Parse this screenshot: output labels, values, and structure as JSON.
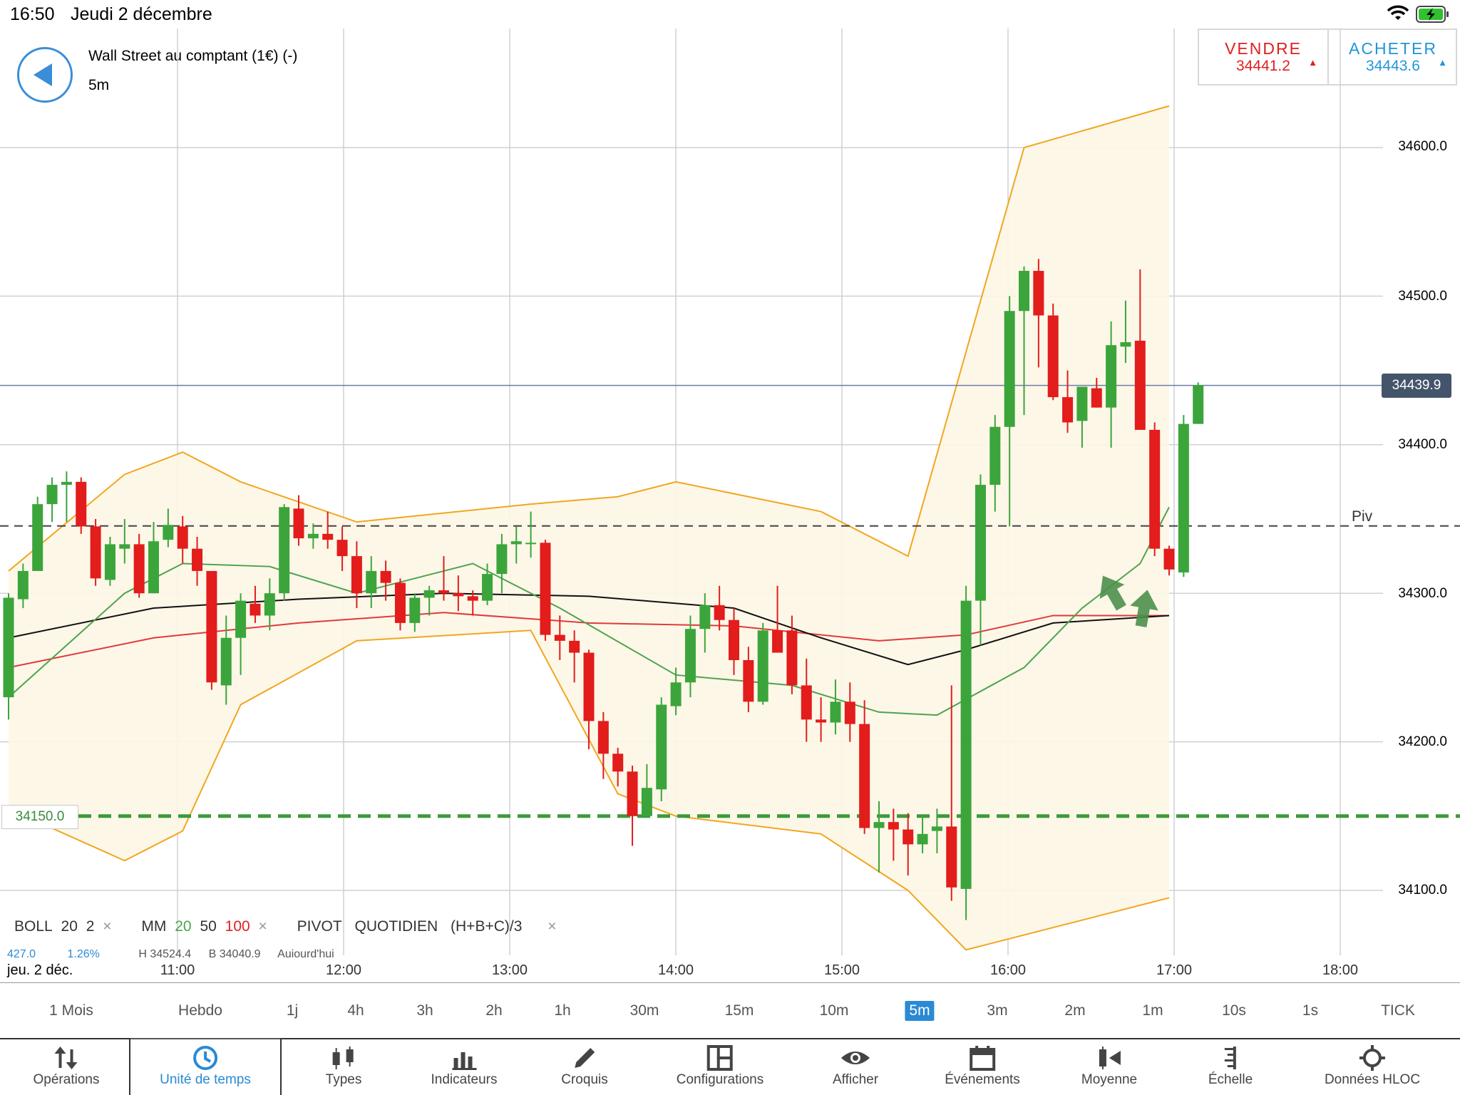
{
  "status": {
    "time": "16:50",
    "date": "Jeudi 2 décembre",
    "wifi_icon": "wifi-icon",
    "battery_icon": "battery-charging-icon"
  },
  "header": {
    "back_icon": "back-arrow-icon",
    "instrument": "Wall Street au comptant (1€) (-)",
    "interval": "5m"
  },
  "trade": {
    "sell": {
      "label": "VENDRE",
      "price": "34441.2",
      "arrow": "▲",
      "color": "#e02020"
    },
    "buy": {
      "label": "ACHETER",
      "price": "34443.6",
      "arrow": "▲",
      "color": "#2196d8"
    }
  },
  "yaxis": {
    "ticks": [
      "34600.0",
      "34500.0",
      "34400.0",
      "34300.0",
      "34200.0",
      "34100.0"
    ]
  },
  "current_price": "34439.9",
  "pivot_label": "Piv",
  "support_label": "34150.0",
  "legend": {
    "boll": "BOLL",
    "boll_p1": "20",
    "boll_p2": "2",
    "mm": "MM",
    "mm_p1": "20",
    "mm_p2": "50",
    "mm_p3": "100",
    "pivot": "PIVOT",
    "pivot_p1": "QUOTIDIEN",
    "pivot_p2": "(H+B+C)/3",
    "close": "×",
    "sub": {
      "a": "427.0",
      "b": "1.26%",
      "c": "H 34524.4",
      "d": "B 34040.9",
      "e": "Aujourd'hui"
    }
  },
  "xaxis": {
    "date": "jeu. 2 déc.",
    "ticks": [
      "11:00",
      "12:00",
      "13:00",
      "14:00",
      "15:00",
      "16:00",
      "17:00",
      "18:00"
    ]
  },
  "timeframes": [
    "1 Mois",
    "Hebdo",
    "1j",
    "4h",
    "3h",
    "2h",
    "1h",
    "30m",
    "15m",
    "10m",
    "5m",
    "3m",
    "2m",
    "1m",
    "10s",
    "1s",
    "TICK"
  ],
  "active_timeframe": "5m",
  "toolbar": [
    {
      "label": "Opérations",
      "icon": "operations-arrows-icon"
    },
    {
      "label": "Unité de temps",
      "icon": "clock-icon"
    },
    {
      "label": "Types",
      "icon": "candlestick-icon"
    },
    {
      "label": "Indicateurs",
      "icon": "bar-chart-icon"
    },
    {
      "label": "Croquis",
      "icon": "pencil-icon"
    },
    {
      "label": "Configurations",
      "icon": "layout-icon"
    },
    {
      "label": "Afficher",
      "icon": "eye-icon"
    },
    {
      "label": "Événements",
      "icon": "calendar-icon"
    },
    {
      "label": "Moyenne",
      "icon": "average-icon"
    },
    {
      "label": "Échelle",
      "icon": "scale-icon"
    },
    {
      "label": "Données HLOC",
      "icon": "crosshair-icon"
    }
  ],
  "colors": {
    "up": "#3ba53b",
    "down": "#e31c1c",
    "boll": "#f2a61f",
    "mm20": "#4ea34e",
    "mm50": "#111111",
    "mm100": "#e23a3a",
    "accent": "#2a8ad4"
  },
  "chart_data": {
    "type": "candlestick",
    "x_unit": "time (5m bars), 2 déc.",
    "ylim": [
      34045,
      34680
    ],
    "candles": [
      {
        "o": 34230,
        "h": 34300,
        "l": 34215,
        "c": 34297
      },
      {
        "o": 34296,
        "h": 34320,
        "l": 34290,
        "c": 34315
      },
      {
        "o": 34315,
        "h": 34365,
        "l": 34315,
        "c": 34360
      },
      {
        "o": 34360,
        "h": 34378,
        "l": 34348,
        "c": 34373
      },
      {
        "o": 34373,
        "h": 34382,
        "l": 34348,
        "c": 34375
      },
      {
        "o": 34375,
        "h": 34378,
        "l": 34340,
        "c": 34345
      },
      {
        "o": 34345,
        "h": 34350,
        "l": 34305,
        "c": 34310
      },
      {
        "o": 34309,
        "h": 34338,
        "l": 34305,
        "c": 34333
      },
      {
        "o": 34330,
        "h": 34350,
        "l": 34320,
        "c": 34333
      },
      {
        "o": 34333,
        "h": 34340,
        "l": 34297,
        "c": 34300
      },
      {
        "o": 34300,
        "h": 34348,
        "l": 34300,
        "c": 34335
      },
      {
        "o": 34336,
        "h": 34357,
        "l": 34331,
        "c": 34346
      },
      {
        "o": 34345,
        "h": 34352,
        "l": 34320,
        "c": 34330
      },
      {
        "o": 34330,
        "h": 34338,
        "l": 34305,
        "c": 34315
      },
      {
        "o": 34315,
        "h": 34315,
        "l": 34235,
        "c": 34240
      },
      {
        "o": 34238,
        "h": 34285,
        "l": 34225,
        "c": 34270
      },
      {
        "o": 34270,
        "h": 34300,
        "l": 34245,
        "c": 34295
      },
      {
        "o": 34293,
        "h": 34305,
        "l": 34280,
        "c": 34285
      },
      {
        "o": 34285,
        "h": 34310,
        "l": 34275,
        "c": 34300
      },
      {
        "o": 34300,
        "h": 34360,
        "l": 34295,
        "c": 34358
      },
      {
        "o": 34357,
        "h": 34366,
        "l": 34332,
        "c": 34337
      },
      {
        "o": 34337,
        "h": 34347,
        "l": 34330,
        "c": 34340
      },
      {
        "o": 34340,
        "h": 34355,
        "l": 34330,
        "c": 34336
      },
      {
        "o": 34336,
        "h": 34345,
        "l": 34315,
        "c": 34325
      },
      {
        "o": 34325,
        "h": 34335,
        "l": 34290,
        "c": 34300
      },
      {
        "o": 34300,
        "h": 34325,
        "l": 34290,
        "c": 34315
      },
      {
        "o": 34315,
        "h": 34322,
        "l": 34295,
        "c": 34307
      },
      {
        "o": 34307,
        "h": 34310,
        "l": 34275,
        "c": 34280
      },
      {
        "o": 34280,
        "h": 34300,
        "l": 34274,
        "c": 34297
      },
      {
        "o": 34297,
        "h": 34305,
        "l": 34285,
        "c": 34302
      },
      {
        "o": 34302,
        "h": 34325,
        "l": 34295,
        "c": 34300
      },
      {
        "o": 34300,
        "h": 34312,
        "l": 34288,
        "c": 34298
      },
      {
        "o": 34298,
        "h": 34302,
        "l": 34285,
        "c": 34295
      },
      {
        "o": 34295,
        "h": 34320,
        "l": 34292,
        "c": 34313
      },
      {
        "o": 34313,
        "h": 34340,
        "l": 34300,
        "c": 34333
      },
      {
        "o": 34333,
        "h": 34345,
        "l": 34320,
        "c": 34335
      },
      {
        "o": 34334,
        "h": 34355,
        "l": 34324,
        "c": 34334
      },
      {
        "o": 34334,
        "h": 34336,
        "l": 34268,
        "c": 34272
      },
      {
        "o": 34272,
        "h": 34285,
        "l": 34255,
        "c": 34268
      },
      {
        "o": 34268,
        "h": 34275,
        "l": 34240,
        "c": 34260
      },
      {
        "o": 34260,
        "h": 34262,
        "l": 34195,
        "c": 34214
      },
      {
        "o": 34214,
        "h": 34220,
        "l": 34175,
        "c": 34192
      },
      {
        "o": 34192,
        "h": 34196,
        "l": 34170,
        "c": 34180
      },
      {
        "o": 34180,
        "h": 34184,
        "l": 34130,
        "c": 34150
      },
      {
        "o": 34150,
        "h": 34185,
        "l": 34150,
        "c": 34169
      },
      {
        "o": 34168,
        "h": 34230,
        "l": 34160,
        "c": 34225
      },
      {
        "o": 34224,
        "h": 34250,
        "l": 34218,
        "c": 34240
      },
      {
        "o": 34240,
        "h": 34285,
        "l": 34230,
        "c": 34276
      },
      {
        "o": 34276,
        "h": 34300,
        "l": 34260,
        "c": 34292
      },
      {
        "o": 34292,
        "h": 34305,
        "l": 34275,
        "c": 34282
      },
      {
        "o": 34282,
        "h": 34290,
        "l": 34245,
        "c": 34255
      },
      {
        "o": 34255,
        "h": 34264,
        "l": 34220,
        "c": 34227
      },
      {
        "o": 34227,
        "h": 34280,
        "l": 34225,
        "c": 34275
      },
      {
        "o": 34275,
        "h": 34305,
        "l": 34262,
        "c": 34260
      },
      {
        "o": 34275,
        "h": 34285,
        "l": 34232,
        "c": 34238
      },
      {
        "o": 34238,
        "h": 34256,
        "l": 34200,
        "c": 34215
      },
      {
        "o": 34215,
        "h": 34230,
        "l": 34200,
        "c": 34213
      },
      {
        "o": 34213,
        "h": 34242,
        "l": 34205,
        "c": 34227
      },
      {
        "o": 34227,
        "h": 34240,
        "l": 34200,
        "c": 34212
      },
      {
        "o": 34212,
        "h": 34228,
        "l": 34138,
        "c": 34142
      },
      {
        "o": 34142,
        "h": 34160,
        "l": 34112,
        "c": 34146
      },
      {
        "o": 34146,
        "h": 34155,
        "l": 34120,
        "c": 34141
      },
      {
        "o": 34141,
        "h": 34152,
        "l": 34110,
        "c": 34131
      },
      {
        "o": 34131,
        "h": 34150,
        "l": 34125,
        "c": 34138
      },
      {
        "o": 34140,
        "h": 34155,
        "l": 34125,
        "c": 34143
      },
      {
        "o": 34143,
        "h": 34238,
        "l": 34093,
        "c": 34102
      },
      {
        "o": 34101,
        "h": 34305,
        "l": 34080,
        "c": 34295
      },
      {
        "o": 34295,
        "h": 34380,
        "l": 34265,
        "c": 34373
      },
      {
        "o": 34373,
        "h": 34420,
        "l": 34355,
        "c": 34412
      },
      {
        "o": 34412,
        "h": 34500,
        "l": 34345,
        "c": 34490
      },
      {
        "o": 34490,
        "h": 34520,
        "l": 34420,
        "c": 34517
      },
      {
        "o": 34517,
        "h": 34525,
        "l": 34452,
        "c": 34487
      },
      {
        "o": 34487,
        "h": 34495,
        "l": 34430,
        "c": 34432
      },
      {
        "o": 34432,
        "h": 34450,
        "l": 34408,
        "c": 34415
      },
      {
        "o": 34416,
        "h": 34438,
        "l": 34398,
        "c": 34439
      },
      {
        "o": 34438,
        "h": 34445,
        "l": 34425,
        "c": 34425
      },
      {
        "o": 34425,
        "h": 34483,
        "l": 34398,
        "c": 34467
      },
      {
        "o": 34466,
        "h": 34497,
        "l": 34455,
        "c": 34469
      },
      {
        "o": 34470,
        "h": 34518,
        "l": 34410,
        "c": 34410
      },
      {
        "o": 34410,
        "h": 34415,
        "l": 34325,
        "c": 34330
      },
      {
        "o": 34330,
        "h": 34332,
        "l": 34312,
        "c": 34316
      },
      {
        "o": 34314,
        "h": 34420,
        "l": 34311,
        "c": 34414
      },
      {
        "o": 34414,
        "h": 34442,
        "l": 34414,
        "c": 34440
      }
    ],
    "bollinger": {
      "upper": [
        [
          0,
          34315
        ],
        [
          8,
          34380
        ],
        [
          12,
          34395
        ],
        [
          16,
          34375
        ],
        [
          24,
          34348
        ],
        [
          36,
          34360
        ],
        [
          42,
          34365
        ],
        [
          46,
          34375
        ],
        [
          56,
          34355
        ],
        [
          62,
          34325
        ],
        [
          70,
          34600
        ],
        [
          80,
          34628
        ]
      ],
      "lower": [
        [
          0,
          34155
        ],
        [
          8,
          34120
        ],
        [
          12,
          34140
        ],
        [
          16,
          34225
        ],
        [
          24,
          34268
        ],
        [
          36,
          34275
        ],
        [
          42,
          34165
        ],
        [
          46,
          34150
        ],
        [
          56,
          34138
        ],
        [
          62,
          34100
        ],
        [
          66,
          34060
        ],
        [
          80,
          34095
        ]
      ]
    },
    "mm20": [
      [
        0,
        34230
      ],
      [
        8,
        34300
      ],
      [
        12,
        34320
      ],
      [
        18,
        34318
      ],
      [
        24,
        34300
      ],
      [
        32,
        34320
      ],
      [
        38,
        34290
      ],
      [
        46,
        34245
      ],
      [
        54,
        34238
      ],
      [
        60,
        34220
      ],
      [
        64,
        34218
      ],
      [
        70,
        34250
      ],
      [
        74,
        34290
      ],
      [
        78,
        34320
      ],
      [
        80,
        34358
      ]
    ],
    "mm50": [
      [
        0,
        34270
      ],
      [
        10,
        34290
      ],
      [
        20,
        34296
      ],
      [
        30,
        34300
      ],
      [
        40,
        34298
      ],
      [
        50,
        34290
      ],
      [
        56,
        34270
      ],
      [
        62,
        34252
      ],
      [
        66,
        34262
      ],
      [
        72,
        34280
      ],
      [
        80,
        34285
      ]
    ],
    "mm100": [
      [
        0,
        34250
      ],
      [
        10,
        34270
      ],
      [
        20,
        34280
      ],
      [
        30,
        34287
      ],
      [
        40,
        34280
      ],
      [
        50,
        34278
      ],
      [
        60,
        34268
      ],
      [
        66,
        34272
      ],
      [
        72,
        34285
      ],
      [
        80,
        34285
      ]
    ],
    "pivot": 34345.3,
    "support": 34150.0,
    "annotations": [
      "green-arrow-up",
      "green-arrow-up"
    ]
  }
}
